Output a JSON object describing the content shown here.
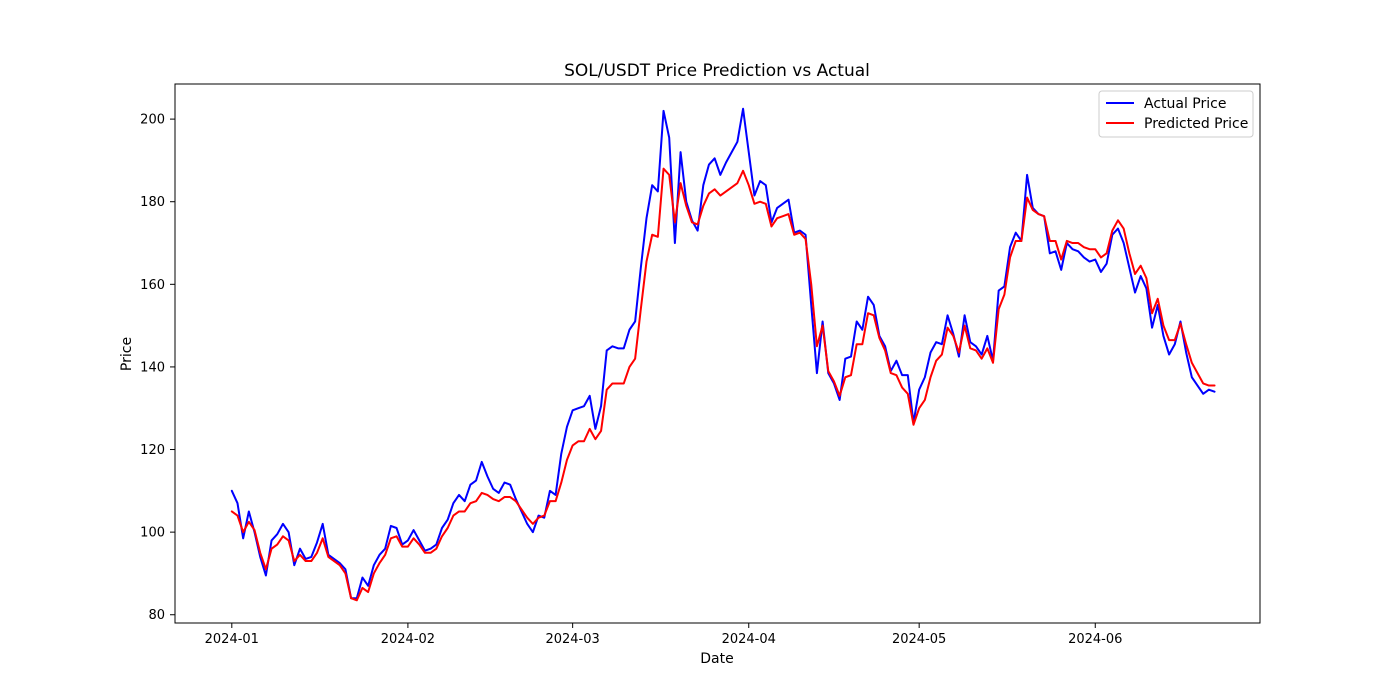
{
  "chart_data": {
    "type": "line",
    "title": "SOL/USDT Price Prediction vs Actual",
    "xlabel": "Date",
    "ylabel": "Price",
    "x_start": "2024-01-01",
    "x_ticks": [
      "2024-01-01",
      "2024-02-01",
      "2024-03-01",
      "2024-04-01",
      "2024-05-01",
      "2024-06-01"
    ],
    "x_tick_labels": [
      "2024-01",
      "2024-02",
      "2024-03",
      "2024-04",
      "2024-05",
      "2024-06"
    ],
    "xlim": [
      "2023-12-22",
      "2024-06-30"
    ],
    "ylim": [
      78,
      208.5
    ],
    "y_ticks": [
      80,
      100,
      120,
      140,
      160,
      180,
      200
    ],
    "grid": false,
    "legend": "top-right",
    "series": [
      {
        "name": "Actual Price",
        "color": "#0000ff",
        "values": [
          110,
          107,
          98.5,
          105,
          100,
          94,
          89.5,
          98,
          99.5,
          102,
          100,
          92,
          96,
          93.5,
          94,
          97.5,
          102,
          94.5,
          93.5,
          92.5,
          91,
          84,
          84,
          89,
          87,
          92,
          94.5,
          96,
          101.5,
          101,
          97,
          98,
          100.5,
          98,
          95.5,
          96,
          97,
          101,
          103,
          107,
          109,
          107.5,
          111.5,
          112.5,
          117,
          113.5,
          110.5,
          109.5,
          112,
          111.5,
          108,
          105,
          102,
          100,
          104,
          103.5,
          110,
          109,
          119,
          125.5,
          129.5,
          130,
          130.5,
          133,
          125,
          130.5,
          144,
          145,
          144.5,
          144.5,
          149,
          151,
          164,
          176,
          184,
          182.5,
          202,
          195.5,
          170,
          192,
          180,
          175.5,
          173,
          184,
          189,
          190.5,
          186.5,
          189.5,
          192,
          194.5,
          202.5,
          192,
          181.5,
          185,
          184,
          175,
          178.5,
          179.5,
          180.5,
          172.5,
          173,
          172,
          155,
          138.5,
          151,
          138.5,
          136,
          132,
          142,
          142.5,
          151,
          149,
          157,
          155,
          147.5,
          145,
          139,
          141.5,
          138,
          138,
          126.5,
          134.5,
          137.5,
          143.5,
          146,
          145.5,
          152.5,
          148,
          142.5,
          152.5,
          146,
          145,
          143,
          147.5,
          141.5,
          158.5,
          159.5,
          169,
          172.5,
          170.5,
          186.5,
          178.5,
          177,
          176.5,
          167.5,
          168,
          163.5,
          170,
          168.5,
          168,
          166.5,
          165.5,
          166,
          163,
          165,
          172,
          173.5,
          170,
          164,
          158,
          162,
          159,
          149.5,
          155,
          147.5,
          143,
          145.5,
          151,
          143.5,
          137.5,
          135.5,
          133.5,
          134.5,
          134
        ]
      },
      {
        "name": "Predicted Price",
        "color": "#ff0000",
        "values": [
          105,
          104,
          100,
          102.5,
          100.5,
          95,
          91,
          96,
          97,
          99,
          98,
          93,
          94.5,
          93,
          93,
          95,
          98.5,
          94,
          93,
          92,
          90,
          84,
          83.5,
          86.5,
          85.5,
          90,
          92.5,
          94.5,
          98.5,
          99,
          96.5,
          96.5,
          98.5,
          97,
          95,
          95,
          96,
          99,
          101,
          104,
          105,
          105,
          107,
          107.5,
          109.5,
          109,
          108,
          107.5,
          108.5,
          108.5,
          107.5,
          105.5,
          103.5,
          102,
          103.5,
          104,
          107.5,
          107.5,
          112,
          117.5,
          121,
          122,
          122,
          125,
          122.5,
          124.5,
          134.5,
          136,
          136,
          136,
          140,
          142,
          154,
          165.5,
          172,
          171.5,
          188,
          186.5,
          175,
          184.5,
          179,
          175,
          174.5,
          179,
          182,
          183,
          181.5,
          182.5,
          183.5,
          184.5,
          187.5,
          184,
          179.5,
          180,
          179.5,
          174,
          176,
          176.5,
          177,
          172,
          172.5,
          171,
          160,
          145,
          150,
          139,
          136.5,
          133,
          137.5,
          138,
          145.5,
          145.5,
          153,
          152.5,
          147,
          144,
          138.5,
          138,
          135,
          133.5,
          126,
          130,
          132,
          137.5,
          141.5,
          143,
          149.5,
          147.5,
          143.5,
          150,
          144.5,
          144,
          142,
          144.5,
          141,
          154,
          157.5,
          166.5,
          170.5,
          170.5,
          181,
          178,
          177,
          176.5,
          170.5,
          170.5,
          166,
          170.5,
          170,
          170,
          169,
          168.5,
          168.5,
          166.5,
          167.5,
          173,
          175.5,
          173.5,
          167.5,
          162.5,
          164.5,
          161.5,
          153,
          156.5,
          150,
          146.5,
          146.5,
          150.5,
          145.5,
          141,
          138.5,
          136,
          135.5,
          135.5
        ]
      }
    ]
  }
}
